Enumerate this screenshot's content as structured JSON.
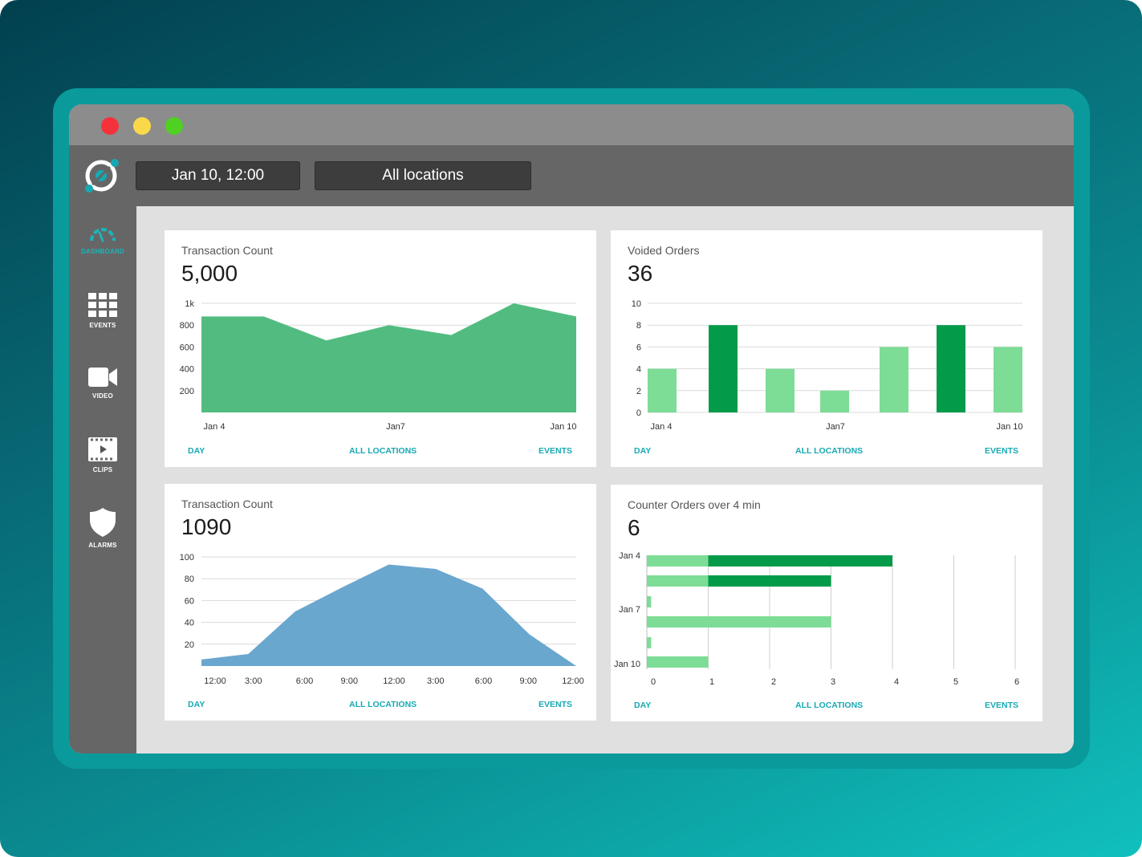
{
  "window": {
    "traffic_lights": [
      "#f5323b",
      "#f9d84a",
      "#4fd022"
    ]
  },
  "topbar": {
    "date_selector": "Jan 10, 12:00",
    "location_selector": "All locations",
    "logo_icon": "target-logo-icon"
  },
  "sidebar": {
    "items": [
      {
        "label": "DASHBOARD",
        "icon": "gauge-icon",
        "active": true
      },
      {
        "label": "EVENTS",
        "icon": "grid-icon",
        "active": false
      },
      {
        "label": "VIDEO",
        "icon": "video-camera-icon",
        "active": false
      },
      {
        "label": "CLIPS",
        "icon": "film-clip-icon",
        "active": false
      },
      {
        "label": "ALARMS",
        "icon": "shield-icon",
        "active": false
      }
    ]
  },
  "colors": {
    "accent": "#17a9b3",
    "green_area": "#52bc80",
    "blue_area": "#6aa7cf",
    "light_green": "#7ddc96",
    "dark_green": "#039b4a"
  },
  "cards": [
    {
      "title": "Transaction Count",
      "value": "5,000",
      "footer": {
        "day": "DAY",
        "locations": "ALL LOCATIONS",
        "events": "EVENTS"
      }
    },
    {
      "title": "Voided Orders",
      "value": "36",
      "footer": {
        "day": "DAY",
        "locations": "ALL LOCATIONS",
        "events": "EVENTS"
      }
    },
    {
      "title": "Transaction Count",
      "value": "1090",
      "footer": {
        "day": "DAY",
        "locations": "ALL LOCATIONS",
        "events": "EVENTS"
      }
    },
    {
      "title": "Counter Orders over 4 min",
      "value": "6",
      "footer": {
        "day": "DAY",
        "locations": "ALL LOCATIONS",
        "events": "EVENTS"
      }
    }
  ],
  "chart_data": [
    {
      "type": "area",
      "x_ticks": [
        "Jan 4",
        "Jan7",
        "Jan 10"
      ],
      "y_ticks": [
        "1k",
        "800",
        "600",
        "400",
        "200"
      ],
      "y_tick_values": [
        1000,
        800,
        600,
        400,
        200
      ],
      "ylim": [
        0,
        1000
      ],
      "values": [
        880,
        880,
        660,
        800,
        710,
        1000,
        880
      ],
      "grid": true,
      "color": "#52bc80"
    },
    {
      "type": "bar",
      "x_ticks": [
        "Jan 4",
        "Jan7",
        "Jan 10"
      ],
      "y_ticks": [
        "10",
        "8",
        "6",
        "4",
        "2",
        "0"
      ],
      "y_tick_values": [
        10,
        8,
        6,
        4,
        2,
        0
      ],
      "ylim": [
        0,
        10
      ],
      "values": [
        4,
        8,
        4,
        2,
        6,
        8,
        6
      ],
      "highlight": [
        false,
        true,
        false,
        false,
        false,
        true,
        false
      ],
      "grid": true
    },
    {
      "type": "area",
      "x_ticks": [
        "12:00",
        "3:00",
        "6:00",
        "9:00",
        "12:00",
        "3:00",
        "6:00",
        "9:00",
        "12:00"
      ],
      "y_ticks": [
        "100",
        "80",
        "60",
        "40",
        "20"
      ],
      "y_tick_values": [
        100,
        80,
        60,
        40,
        20
      ],
      "ylim": [
        0,
        100
      ],
      "values": [
        6,
        11,
        50,
        72,
        93,
        89,
        71,
        29,
        0
      ],
      "grid": true,
      "color": "#6aa7cf"
    },
    {
      "type": "bar",
      "orientation": "horizontal",
      "y_ticks": [
        "Jan 4",
        "Jan 7",
        "Jan 10"
      ],
      "y_tick_rows": [
        0,
        2,
        5
      ],
      "x_ticks": [
        "0",
        "1",
        "2",
        "3",
        "4",
        "5",
        "6"
      ],
      "xlim": [
        0,
        6
      ],
      "series": [
        {
          "values": [
            1,
            1,
            0.07,
            3,
            0.07,
            1
          ]
        },
        {
          "values": [
            4,
            3,
            0,
            0,
            0,
            1
          ]
        }
      ],
      "grid": true
    }
  ]
}
